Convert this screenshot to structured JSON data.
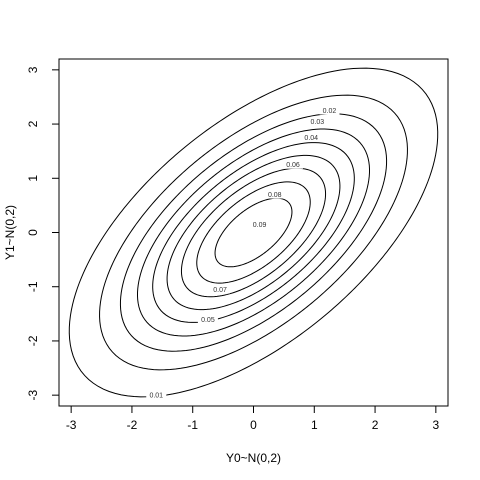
{
  "chart_data": {
    "type": "contour",
    "xlabel": "Y0~N(0,2)",
    "ylabel": "Y1~N(0,2)",
    "xlim": [
      -3.2,
      3.2
    ],
    "ylim": [
      -3.2,
      3.2
    ],
    "x_ticks": [
      -3,
      -2,
      -1,
      0,
      1,
      2,
      3
    ],
    "y_ticks": [
      -3,
      -2,
      -1,
      0,
      1,
      2,
      3
    ],
    "x_tick_labels": [
      "-3",
      "-2",
      "-1",
      "0",
      "1",
      "2",
      "3"
    ],
    "y_tick_labels": [
      "-3",
      "-2",
      "-1",
      "0",
      "1",
      "2",
      "3"
    ],
    "grid": false,
    "distribution": {
      "mean": [
        0,
        0
      ],
      "variance": [
        2,
        2
      ],
      "correlation": 0.6
    },
    "levels": [
      {
        "value": 0.01,
        "label": "0.01",
        "label_at": [
          -1.6,
          -3.0
        ]
      },
      {
        "value": 0.02,
        "label": "0.02",
        "label_at": [
          1.25,
          2.25
        ]
      },
      {
        "value": 0.03,
        "label": "0.03",
        "label_at": [
          1.05,
          2.05
        ]
      },
      {
        "value": 0.04,
        "label": "0.04",
        "label_at": [
          0.95,
          1.75
        ]
      },
      {
        "value": 0.05,
        "label": "0.05",
        "label_at": [
          -0.75,
          -1.6
        ]
      },
      {
        "value": 0.06,
        "label": "0.06",
        "label_at": [
          0.65,
          1.25
        ]
      },
      {
        "value": 0.07,
        "label": "0.07",
        "label_at": [
          -0.55,
          -1.05
        ]
      },
      {
        "value": 0.08,
        "label": "0.08",
        "label_at": [
          0.35,
          0.7
        ]
      },
      {
        "value": 0.09,
        "label": "0.09",
        "label_at": [
          0.1,
          0.15
        ]
      }
    ]
  }
}
